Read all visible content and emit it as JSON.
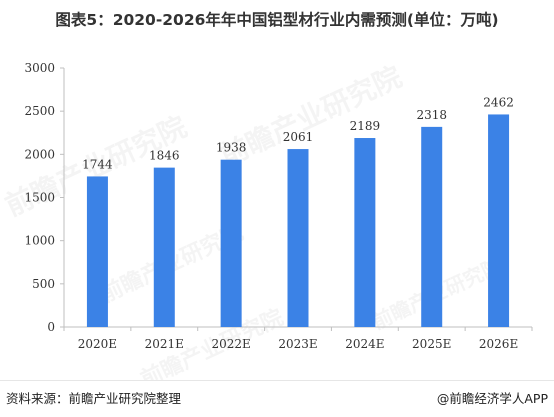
{
  "title": "图表5：2020-2026年年中国铝型材行业内需预测(单位：万吨)",
  "source": "资料来源：前瞻产业研究院整理",
  "credit": "@前瞻经济学人APP",
  "watermark": "前瞻产业研究院",
  "colors": {
    "bar": "#3b82e6",
    "axis": "#bfbfbf",
    "grid": "#e9e9e9",
    "text": "#333333"
  },
  "chart_data": {
    "type": "bar",
    "categories": [
      "2020E",
      "2021E",
      "2022E",
      "2023E",
      "2024E",
      "2025E",
      "2026E"
    ],
    "values": [
      1744,
      1846,
      1938,
      2061,
      2189,
      2318,
      2462
    ],
    "ylim": [
      0,
      3000
    ],
    "yticks": [
      0,
      500,
      1000,
      1500,
      2000,
      2500,
      3000
    ],
    "grid": false,
    "data_labels": true
  }
}
